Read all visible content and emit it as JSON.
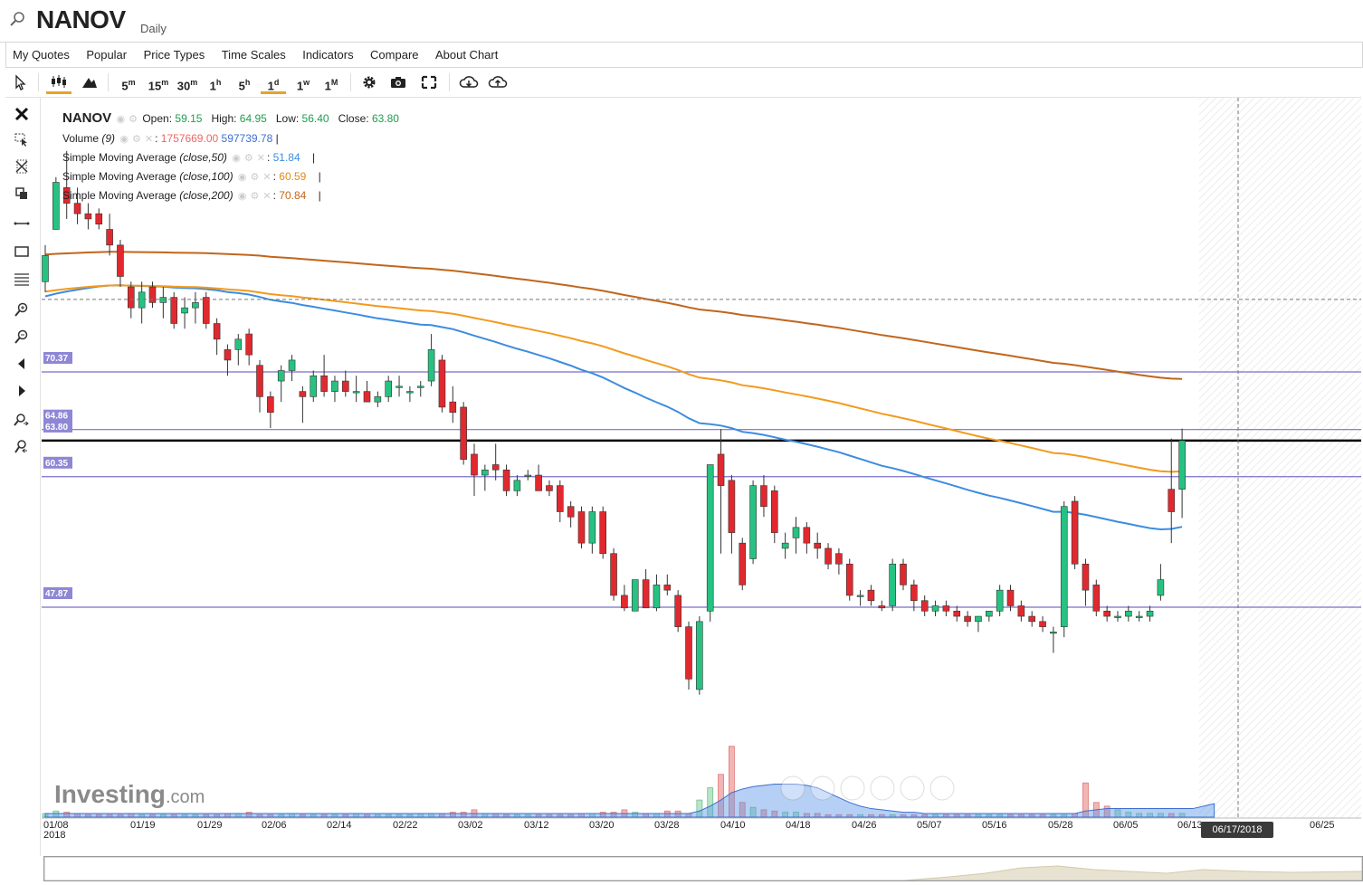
{
  "header": {
    "symbol": "NANOV",
    "period": "Daily"
  },
  "menu": [
    "My Quotes",
    "Popular",
    "Price Types",
    "Time Scales",
    "Indicators",
    "Compare",
    "About Chart"
  ],
  "toolbar": {
    "intervals": [
      {
        "num": "5",
        "unit": "m"
      },
      {
        "num": "15",
        "unit": "m"
      },
      {
        "num": "30",
        "unit": "m"
      },
      {
        "num": "1",
        "unit": "h"
      },
      {
        "num": "5",
        "unit": "h"
      },
      {
        "num": "1",
        "unit": "d"
      },
      {
        "num": "1",
        "unit": "w"
      },
      {
        "num": "1",
        "unit": "M"
      }
    ],
    "active_interval": "1d",
    "accent": "#e5a427"
  },
  "legend": {
    "symbol": "NANOV",
    "open_label": "Open:",
    "open": "59.15",
    "high_label": "High:",
    "high": "64.95",
    "low_label": "Low:",
    "low": "56.40",
    "close_label": "Close:",
    "close": "63.80",
    "volume_label": "Volume",
    "volume_param": "(9)",
    "volume_value": "1757669.00",
    "volume_ma": "597739.78",
    "sma": [
      {
        "label": "Simple Moving Average",
        "param": "(close,50)",
        "value": "51.84",
        "color": "#3d8ce0"
      },
      {
        "label": "Simple Moving Average",
        "param": "(close,100)",
        "value": "60.59",
        "color": "#f39a1e"
      },
      {
        "label": "Simple Moving Average",
        "param": "(close,200)",
        "value": "70.84",
        "color": "#c1661c"
      }
    ]
  },
  "cursor_date": "06/17/2018",
  "watermark": "Investing.com",
  "colors": {
    "up": "#26c281",
    "down": "#e0292f",
    "hline": "#7a6fc7",
    "sma50": "#3d8ce0",
    "sma100": "#f39a1e",
    "sma200": "#c1661c"
  },
  "chart_data": {
    "type": "candlestick",
    "x_ticks": [
      "01/08",
      "01/19",
      "01/29",
      "02/06",
      "02/14",
      "02/22",
      "03/02",
      "03/12",
      "03/20",
      "03/28",
      "04/10",
      "04/18",
      "04/26",
      "05/07",
      "05/16",
      "05/28",
      "06/05",
      "06/13",
      "06/25"
    ],
    "x_tick_year": "2018",
    "hlines": [
      {
        "value": 70.37,
        "label": "70.37"
      },
      {
        "value": 64.86,
        "label": "64.86"
      },
      {
        "value": 60.35,
        "label": "60.35"
      },
      {
        "value": 47.87,
        "label": "47.87"
      }
    ],
    "last_close_line": {
      "value": 63.8,
      "label": "63.80"
    },
    "dashed_crosshair_value": 77.3,
    "ylim": [
      37.0,
      95.0
    ],
    "candles": [
      {
        "o": 79.0,
        "h": 82.5,
        "l": 78.0,
        "c": 81.5
      },
      {
        "o": 84.0,
        "h": 89.0,
        "l": 84.0,
        "c": 88.5
      },
      {
        "o": 88.0,
        "h": 91.5,
        "l": 85.0,
        "c": 86.5
      },
      {
        "o": 86.5,
        "h": 88.0,
        "l": 84.5,
        "c": 85.5
      },
      {
        "o": 85.5,
        "h": 86.5,
        "l": 84.0,
        "c": 85.0
      },
      {
        "o": 85.5,
        "h": 86.0,
        "l": 84.0,
        "c": 84.5
      },
      {
        "o": 84.0,
        "h": 85.5,
        "l": 81.5,
        "c": 82.5
      },
      {
        "o": 82.5,
        "h": 83.0,
        "l": 78.5,
        "c": 79.5
      },
      {
        "o": 78.5,
        "h": 79.0,
        "l": 75.5,
        "c": 76.5
      },
      {
        "o": 76.5,
        "h": 79.0,
        "l": 75.0,
        "c": 78.0
      },
      {
        "o": 78.5,
        "h": 79.0,
        "l": 76.5,
        "c": 77.0
      },
      {
        "o": 77.0,
        "h": 78.5,
        "l": 75.5,
        "c": 77.5
      },
      {
        "o": 77.5,
        "h": 78.0,
        "l": 74.5,
        "c": 75.0
      },
      {
        "o": 76.0,
        "h": 77.5,
        "l": 74.5,
        "c": 76.5
      },
      {
        "o": 76.5,
        "h": 78.0,
        "l": 75.0,
        "c": 77.0
      },
      {
        "o": 77.5,
        "h": 78.0,
        "l": 74.5,
        "c": 75.0
      },
      {
        "o": 75.0,
        "h": 75.5,
        "l": 72.0,
        "c": 73.5
      },
      {
        "o": 72.5,
        "h": 73.0,
        "l": 70.0,
        "c": 71.5
      },
      {
        "o": 72.5,
        "h": 74.0,
        "l": 71.0,
        "c": 73.5
      },
      {
        "o": 74.0,
        "h": 74.5,
        "l": 71.0,
        "c": 72.0
      },
      {
        "o": 71.0,
        "h": 71.5,
        "l": 66.5,
        "c": 68.0
      },
      {
        "o": 68.0,
        "h": 68.5,
        "l": 65.0,
        "c": 66.5
      },
      {
        "o": 69.5,
        "h": 71.0,
        "l": 67.5,
        "c": 70.5
      },
      {
        "o": 70.5,
        "h": 72.0,
        "l": 69.5,
        "c": 71.5
      },
      {
        "o": 68.5,
        "h": 69.0,
        "l": 65.5,
        "c": 68.0
      },
      {
        "o": 68.0,
        "h": 70.5,
        "l": 67.5,
        "c": 70.0
      },
      {
        "o": 70.0,
        "h": 72.0,
        "l": 68.0,
        "c": 68.5
      },
      {
        "o": 68.5,
        "h": 70.0,
        "l": 67.5,
        "c": 69.5
      },
      {
        "o": 69.5,
        "h": 70.5,
        "l": 68.0,
        "c": 68.5
      },
      {
        "o": 68.5,
        "h": 70.0,
        "l": 67.5,
        "c": 68.5
      },
      {
        "o": 68.5,
        "h": 69.5,
        "l": 67.5,
        "c": 67.5
      },
      {
        "o": 67.5,
        "h": 68.5,
        "l": 67.0,
        "c": 68.0
      },
      {
        "o": 68.0,
        "h": 70.0,
        "l": 67.5,
        "c": 69.5
      },
      {
        "o": 69.0,
        "h": 70.0,
        "l": 68.0,
        "c": 69.0
      },
      {
        "o": 68.5,
        "h": 69.0,
        "l": 67.5,
        "c": 68.5
      },
      {
        "o": 69.0,
        "h": 69.5,
        "l": 68.0,
        "c": 69.0
      },
      {
        "o": 69.5,
        "h": 74.0,
        "l": 69.0,
        "c": 72.5
      },
      {
        "o": 71.5,
        "h": 72.0,
        "l": 66.5,
        "c": 67.0
      },
      {
        "o": 67.5,
        "h": 69.0,
        "l": 65.5,
        "c": 66.5
      },
      {
        "o": 67.0,
        "h": 67.5,
        "l": 61.5,
        "c": 62.0
      },
      {
        "o": 62.5,
        "h": 63.5,
        "l": 58.5,
        "c": 60.5
      },
      {
        "o": 60.5,
        "h": 61.5,
        "l": 59.0,
        "c": 61.0
      },
      {
        "o": 61.5,
        "h": 63.5,
        "l": 60.0,
        "c": 61.0
      },
      {
        "o": 61.0,
        "h": 61.5,
        "l": 58.5,
        "c": 59.0
      },
      {
        "o": 59.0,
        "h": 60.5,
        "l": 58.5,
        "c": 60.0
      },
      {
        "o": 60.5,
        "h": 61.0,
        "l": 60.0,
        "c": 60.5
      },
      {
        "o": 60.5,
        "h": 61.5,
        "l": 59.0,
        "c": 59.0
      },
      {
        "o": 59.5,
        "h": 60.0,
        "l": 58.5,
        "c": 59.0
      },
      {
        "o": 59.5,
        "h": 60.0,
        "l": 56.0,
        "c": 57.0
      },
      {
        "o": 57.5,
        "h": 58.0,
        "l": 55.5,
        "c": 56.5
      },
      {
        "o": 57.0,
        "h": 57.5,
        "l": 53.5,
        "c": 54.0
      },
      {
        "o": 54.0,
        "h": 57.5,
        "l": 53.0,
        "c": 57.0
      },
      {
        "o": 57.0,
        "h": 57.5,
        "l": 52.5,
        "c": 53.0
      },
      {
        "o": 53.0,
        "h": 53.5,
        "l": 48.5,
        "c": 49.0
      },
      {
        "o": 49.0,
        "h": 50.0,
        "l": 47.5,
        "c": 47.8
      },
      {
        "o": 47.5,
        "h": 50.5,
        "l": 47.5,
        "c": 50.5
      },
      {
        "o": 50.5,
        "h": 51.5,
        "l": 47.8,
        "c": 47.8
      },
      {
        "o": 47.8,
        "h": 51.0,
        "l": 47.5,
        "c": 50.0
      },
      {
        "o": 50.0,
        "h": 51.0,
        "l": 49.0,
        "c": 49.5
      },
      {
        "o": 49.0,
        "h": 49.5,
        "l": 45.5,
        "c": 46.0
      },
      {
        "o": 46.0,
        "h": 46.5,
        "l": 40.0,
        "c": 41.0
      },
      {
        "o": 40.0,
        "h": 47.0,
        "l": 39.5,
        "c": 46.5
      },
      {
        "o": 47.5,
        "h": 61.5,
        "l": 46.5,
        "c": 61.5
      },
      {
        "o": 62.5,
        "h": 64.9,
        "l": 53.0,
        "c": 59.5
      },
      {
        "o": 60.0,
        "h": 60.5,
        "l": 53.0,
        "c": 55.0
      },
      {
        "o": 54.0,
        "h": 54.5,
        "l": 49.5,
        "c": 50.0
      },
      {
        "o": 52.5,
        "h": 60.0,
        "l": 52.0,
        "c": 59.5
      },
      {
        "o": 59.5,
        "h": 60.5,
        "l": 56.5,
        "c": 57.5
      },
      {
        "o": 59.0,
        "h": 59.5,
        "l": 54.0,
        "c": 55.0
      },
      {
        "o": 53.5,
        "h": 55.0,
        "l": 52.5,
        "c": 54.0
      },
      {
        "o": 54.5,
        "h": 56.5,
        "l": 53.0,
        "c": 55.5
      },
      {
        "o": 55.5,
        "h": 56.0,
        "l": 53.0,
        "c": 54.0
      },
      {
        "o": 54.0,
        "h": 55.0,
        "l": 52.5,
        "c": 53.5
      },
      {
        "o": 53.5,
        "h": 54.0,
        "l": 51.5,
        "c": 52.0
      },
      {
        "o": 53.0,
        "h": 53.5,
        "l": 51.0,
        "c": 52.0
      },
      {
        "o": 52.0,
        "h": 52.5,
        "l": 48.5,
        "c": 49.0
      },
      {
        "o": 49.0,
        "h": 49.5,
        "l": 48.0,
        "c": 49.0
      },
      {
        "o": 49.5,
        "h": 50.0,
        "l": 48.0,
        "c": 48.5
      },
      {
        "o": 48.0,
        "h": 48.5,
        "l": 47.5,
        "c": 47.8
      },
      {
        "o": 48.0,
        "h": 52.5,
        "l": 47.5,
        "c": 52.0
      },
      {
        "o": 52.0,
        "h": 52.5,
        "l": 49.5,
        "c": 50.0
      },
      {
        "o": 50.0,
        "h": 50.5,
        "l": 47.5,
        "c": 48.5
      },
      {
        "o": 48.5,
        "h": 49.0,
        "l": 47.0,
        "c": 47.5
      },
      {
        "o": 47.5,
        "h": 48.5,
        "l": 47.0,
        "c": 48.0
      },
      {
        "o": 48.0,
        "h": 48.5,
        "l": 47.0,
        "c": 47.5
      },
      {
        "o": 47.5,
        "h": 48.0,
        "l": 46.5,
        "c": 47.0
      },
      {
        "o": 47.0,
        "h": 47.5,
        "l": 46.0,
        "c": 46.5
      },
      {
        "o": 46.5,
        "h": 47.0,
        "l": 45.5,
        "c": 47.0
      },
      {
        "o": 47.0,
        "h": 47.5,
        "l": 46.5,
        "c": 47.5
      },
      {
        "o": 47.5,
        "h": 50.0,
        "l": 47.0,
        "c": 49.5
      },
      {
        "o": 49.5,
        "h": 50.0,
        "l": 47.5,
        "c": 48.0
      },
      {
        "o": 48.0,
        "h": 48.5,
        "l": 46.5,
        "c": 47.0
      },
      {
        "o": 47.0,
        "h": 47.5,
        "l": 46.0,
        "c": 46.5
      },
      {
        "o": 46.5,
        "h": 47.0,
        "l": 45.5,
        "c": 46.0
      },
      {
        "o": 45.5,
        "h": 46.0,
        "l": 43.5,
        "c": 45.5
      },
      {
        "o": 46.0,
        "h": 58.0,
        "l": 45.0,
        "c": 57.5
      },
      {
        "o": 58.0,
        "h": 58.5,
        "l": 51.5,
        "c": 52.0
      },
      {
        "o": 52.0,
        "h": 52.5,
        "l": 48.0,
        "c": 49.5
      },
      {
        "o": 50.0,
        "h": 50.5,
        "l": 47.0,
        "c": 47.5
      },
      {
        "o": 47.5,
        "h": 48.0,
        "l": 46.5,
        "c": 47.0
      },
      {
        "o": 47.0,
        "h": 47.5,
        "l": 46.5,
        "c": 47.0
      },
      {
        "o": 47.0,
        "h": 48.0,
        "l": 46.5,
        "c": 47.5
      },
      {
        "o": 47.0,
        "h": 47.5,
        "l": 46.5,
        "c": 47.0
      },
      {
        "o": 47.0,
        "h": 48.0,
        "l": 46.5,
        "c": 47.5
      },
      {
        "o": 49.0,
        "h": 52.0,
        "l": 48.5,
        "c": 50.5
      },
      {
        "o": 59.15,
        "h": 64.0,
        "l": 54.0,
        "c": 57.0
      },
      {
        "o": 59.15,
        "h": 64.95,
        "l": 56.4,
        "c": 63.8
      }
    ],
    "volume": [
      3,
      5,
      4,
      3,
      2,
      2,
      2,
      2,
      3,
      2,
      2,
      2,
      2,
      2,
      2,
      2,
      2,
      3,
      3,
      4,
      2,
      2,
      2,
      3,
      2,
      2,
      2,
      2,
      2,
      3,
      2,
      2,
      2,
      2,
      2,
      3,
      3,
      3,
      4,
      4,
      6,
      3,
      3,
      2,
      2,
      2,
      2,
      2,
      2,
      2,
      3,
      3,
      4,
      4,
      6,
      4,
      3,
      3,
      5,
      5,
      3,
      14,
      24,
      35,
      58,
      12,
      8,
      6,
      5,
      4,
      4,
      3,
      3,
      2,
      2,
      2,
      2,
      2,
      2,
      2,
      2,
      2,
      2,
      2,
      2,
      2,
      2,
      2,
      2,
      2,
      2,
      2,
      2,
      2,
      2,
      2,
      3,
      28,
      12,
      9,
      6,
      4,
      3,
      3,
      3,
      3,
      3,
      6,
      30,
      28
    ],
    "volume_ma_level": [
      3,
      3,
      3,
      3,
      3,
      3,
      3,
      3,
      3,
      3,
      3,
      3,
      3,
      3,
      3,
      3,
      3,
      3,
      3,
      3,
      3,
      3,
      3,
      3,
      3,
      3,
      3,
      3,
      3,
      3,
      3,
      3,
      3,
      3,
      3,
      3,
      3,
      3,
      3,
      3,
      3,
      3,
      3,
      3,
      3,
      3,
      3,
      3,
      3,
      3,
      3,
      3,
      3,
      3,
      3,
      3,
      3,
      3,
      3,
      3,
      3,
      5,
      9,
      14,
      20,
      23,
      25,
      26,
      27,
      27,
      27,
      26,
      24,
      20,
      16,
      12,
      9,
      7,
      6,
      5,
      4,
      4,
      3,
      3,
      3,
      3,
      3,
      3,
      3,
      3,
      3,
      3,
      3,
      3,
      3,
      3,
      3,
      5,
      6,
      7,
      7,
      7,
      7,
      7,
      7,
      7,
      7,
      7,
      9,
      11
    ]
  }
}
